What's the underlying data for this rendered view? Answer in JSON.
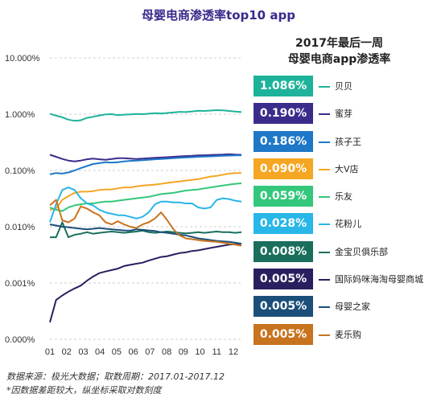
{
  "title": "母婴电商渗透率top10 app",
  "legend_title_line1": "2017年最后一周",
  "legend_title_line2": "母婴电商app渗透率",
  "footnote1": "数据来源：极光大数据；取数周期：2017.01-2017.12",
  "footnote2": "*因数据差距较大，纵坐标采取对数刻度",
  "chart_data": {
    "type": "line",
    "y_scale": "log",
    "ylim": [
      1e-06,
      0.1
    ],
    "y_ticks": [
      {
        "value": 0.1,
        "label": "10.000%"
      },
      {
        "value": 0.01,
        "label": "1.000%"
      },
      {
        "value": 0.001,
        "label": "0.100%"
      },
      {
        "value": 0.0001,
        "label": "0.010%"
      },
      {
        "value": 1e-05,
        "label": "0.001%"
      },
      {
        "value": 1e-06,
        "label": "0.000%"
      }
    ],
    "x_ticks": [
      "01",
      "02",
      "03",
      "04",
      "05",
      "06",
      "07",
      "08",
      "09",
      "10",
      "11",
      "12"
    ],
    "grid": "horizontal-dashed",
    "series": [
      {
        "name": "贝贝",
        "final_label": "1.086%",
        "color": "#1db39a",
        "values": [
          0.0102,
          0.0094,
          0.0088,
          0.008,
          0.0076,
          0.0078,
          0.0086,
          0.009,
          0.0095,
          0.0099,
          0.01,
          0.0096,
          0.0098,
          0.0099,
          0.0101,
          0.01,
          0.0102,
          0.0104,
          0.0103,
          0.0105,
          0.0107,
          0.011,
          0.0109,
          0.0112,
          0.0115,
          0.0114,
          0.0116,
          0.0118,
          0.0117,
          0.0114,
          0.0111,
          0.0109
        ]
      },
      {
        "name": "蜜芽",
        "final_label": "0.190%",
        "color": "#3b2c8c",
        "values": [
          0.0019,
          0.00175,
          0.0016,
          0.0015,
          0.00145,
          0.0015,
          0.00158,
          0.00162,
          0.00158,
          0.00155,
          0.0016,
          0.00165,
          0.00165,
          0.00162,
          0.0016,
          0.00162,
          0.00165,
          0.00168,
          0.0017,
          0.00172,
          0.00175,
          0.00178,
          0.0018,
          0.00182,
          0.00185,
          0.00186,
          0.00188,
          0.0019,
          0.00192,
          0.00195,
          0.00192,
          0.0019
        ]
      },
      {
        "name": "孩子王",
        "final_label": "0.186%",
        "color": "#1f77c8",
        "values": [
          0.00085,
          0.0009,
          0.00088,
          0.00092,
          0.001,
          0.0011,
          0.0012,
          0.0013,
          0.00135,
          0.0014,
          0.00138,
          0.0014,
          0.00145,
          0.00148,
          0.0015,
          0.00152,
          0.00155,
          0.00158,
          0.0016,
          0.00162,
          0.00165,
          0.00168,
          0.0017,
          0.00172,
          0.00175,
          0.00176,
          0.00178,
          0.0018,
          0.00182,
          0.00184,
          0.00185,
          0.00186
        ]
      },
      {
        "name": "大V店",
        "final_label": "0.090%",
        "color": "#f5a623",
        "values": [
          0.0002,
          0.00021,
          0.0003,
          0.00035,
          0.0004,
          0.00042,
          0.00042,
          0.00043,
          0.00045,
          0.00046,
          0.00046,
          0.00048,
          0.0005,
          0.0005,
          0.00052,
          0.00054,
          0.00055,
          0.00056,
          0.00058,
          0.0006,
          0.00062,
          0.00064,
          0.00066,
          0.00068,
          0.0007,
          0.00074,
          0.00078,
          0.0008,
          0.00084,
          0.00088,
          0.0009,
          0.0009
        ]
      },
      {
        "name": "乐友",
        "final_label": "0.059%",
        "color": "#34c77b",
        "values": [
          0.00022,
          0.0002,
          0.00019,
          0.00022,
          0.00024,
          0.00025,
          0.00026,
          0.00026,
          0.00027,
          0.00028,
          0.00028,
          0.00029,
          0.0003,
          0.00031,
          0.00032,
          0.00033,
          0.00034,
          0.00036,
          0.00038,
          0.00039,
          0.0004,
          0.00042,
          0.00044,
          0.00045,
          0.00046,
          0.00048,
          0.0005,
          0.00052,
          0.00054,
          0.00056,
          0.00058,
          0.00059
        ]
      },
      {
        "name": "花粉儿",
        "final_label": "0.028%",
        "color": "#29b6e8",
        "values": [
          0.00012,
          0.00025,
          0.00045,
          0.0005,
          0.00045,
          0.00032,
          0.00026,
          0.00024,
          0.0002,
          0.00018,
          0.00017,
          0.00016,
          0.00016,
          0.00015,
          0.00014,
          0.00015,
          0.00018,
          0.00025,
          0.00028,
          0.00028,
          0.00027,
          0.00027,
          0.00026,
          0.00026,
          0.00022,
          0.00021,
          0.00022,
          0.0003,
          0.00032,
          0.00031,
          0.00029,
          0.00028
        ]
      },
      {
        "name": "金宝贝俱乐部",
        "final_label": "0.008%",
        "color": "#1a6e5c",
        "values": [
          6.5e-05,
          6.5e-05,
          0.00012,
          6.5e-05,
          7.2e-05,
          7.5e-05,
          8e-05,
          7.5e-05,
          7.8e-05,
          8e-05,
          8.2e-05,
          8e-05,
          7.8e-05,
          8e-05,
          8.2e-05,
          8.5e-05,
          8e-05,
          7.8e-05,
          8e-05,
          8.2e-05,
          8e-05,
          7.8e-05,
          7.6e-05,
          7.8e-05,
          8e-05,
          7.8e-05,
          8e-05,
          8.2e-05,
          8e-05,
          8e-05,
          7.8e-05,
          8e-05
        ]
      },
      {
        "name": "国际妈咪海淘母婴商城",
        "final_label": "0.005%",
        "color": "#2a1f5e",
        "values": [
          2e-06,
          5e-06,
          6e-06,
          7e-06,
          8e-06,
          9e-06,
          1.1e-05,
          1.3e-05,
          1.5e-05,
          1.6e-05,
          1.7e-05,
          1.8e-05,
          2e-05,
          2.1e-05,
          2.2e-05,
          2.3e-05,
          2.5e-05,
          2.7e-05,
          2.9e-05,
          3e-05,
          3.2e-05,
          3.4e-05,
          3.5e-05,
          3.7e-05,
          3.8e-05,
          4e-05,
          4.2e-05,
          4.4e-05,
          4.6e-05,
          4.8e-05,
          4.9e-05,
          5e-05
        ]
      },
      {
        "name": "母婴之家",
        "final_label": "0.005%",
        "color": "#1b4f7a",
        "values": [
          0.00011,
          0.000105,
          0.0001,
          9.8e-05,
          9.5e-05,
          9.2e-05,
          9e-05,
          9.2e-05,
          9.5e-05,
          9.2e-05,
          9e-05,
          8.8e-05,
          8.6e-05,
          8.5e-05,
          9e-05,
          8.8e-05,
          8.6e-05,
          8.4e-05,
          8e-05,
          7.8e-05,
          7.5e-05,
          7.2e-05,
          7e-05,
          6.6e-05,
          6.2e-05,
          6e-05,
          5.8e-05,
          5.6e-05,
          5.5e-05,
          5.4e-05,
          5.2e-05,
          5e-05
        ]
      },
      {
        "name": "麦乐购",
        "final_label": "0.005%",
        "color": "#c8731e",
        "values": [
          0.00024,
          0.0003,
          0.00013,
          0.00012,
          0.00014,
          0.00023,
          0.00021,
          0.00018,
          0.00016,
          0.00012,
          0.00011,
          0.000125,
          0.00011,
          0.0001,
          9.5e-05,
          0.00011,
          0.00012,
          0.00014,
          0.00018,
          0.00013,
          9e-05,
          7e-05,
          6.2e-05,
          6e-05,
          5.8e-05,
          5.6e-05,
          5.5e-05,
          5.4e-05,
          5.2e-05,
          5e-05,
          4.8e-05,
          4.6e-05
        ]
      }
    ]
  }
}
